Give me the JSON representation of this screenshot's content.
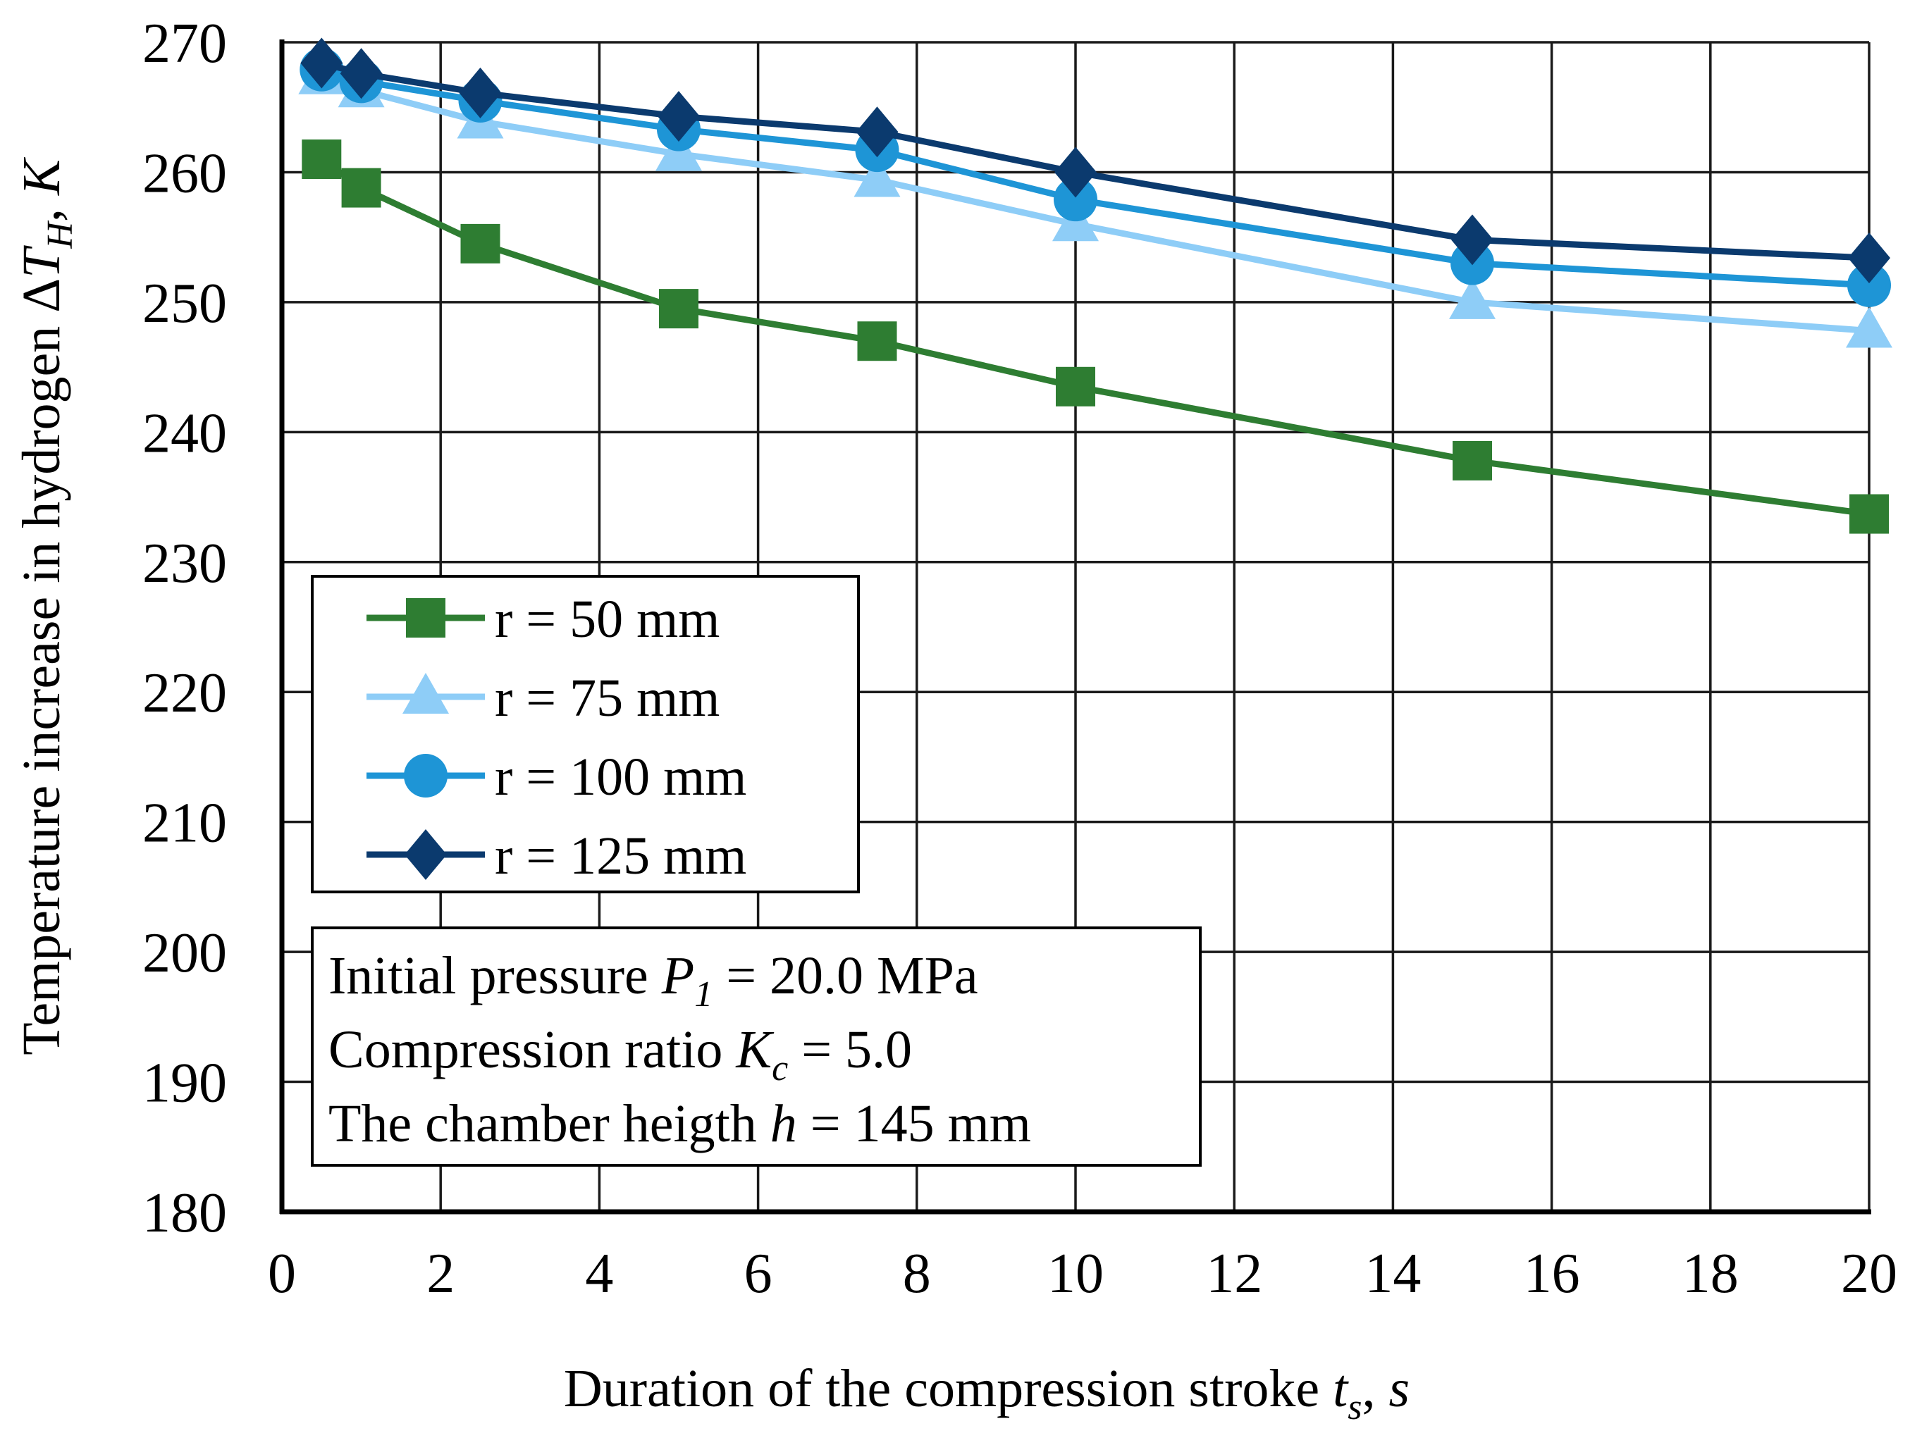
{
  "chart_data": {
    "type": "line",
    "title": "",
    "xlabel": {
      "prefix": "Duration of the compression stroke ",
      "var": "t",
      "sub": "s",
      "unit_sep": ", ",
      "unit": "s"
    },
    "ylabel": {
      "prefix": "Temperature increase in hydrogen Δ",
      "var": "T",
      "sub": "H",
      "unit_sep": ", ",
      "unit": "K"
    },
    "xlim": [
      0,
      20
    ],
    "ylim": [
      180,
      270
    ],
    "xticks": [
      "0",
      "2",
      "4",
      "6",
      "8",
      "10",
      "12",
      "14",
      "16",
      "18",
      "20"
    ],
    "yticks": [
      "180",
      "190",
      "200",
      "210",
      "220",
      "230",
      "240",
      "250",
      "260",
      "270"
    ],
    "grid": true,
    "x": [
      0.5,
      1,
      2.5,
      5,
      7.5,
      10,
      15,
      20
    ],
    "series": [
      {
        "name": "r = 50 mm",
        "color": "#2e7d32",
        "marker": "square",
        "values": [
          261.0,
          258.8,
          254.5,
          249.5,
          247.0,
          243.5,
          237.8,
          233.7
        ]
      },
      {
        "name": "r = 75 mm",
        "color": "#8ecdf7",
        "marker": "triangle",
        "values": [
          267.3,
          266.3,
          263.9,
          261.4,
          259.4,
          256.0,
          250.0,
          247.8
        ]
      },
      {
        "name": "r = 100 mm",
        "color": "#1e95d6",
        "marker": "circle",
        "values": [
          267.9,
          267.0,
          265.5,
          263.3,
          261.7,
          257.9,
          253.0,
          251.3
        ]
      },
      {
        "name": "r = 125 mm",
        "color": "#0b3a6e",
        "marker": "diamond",
        "values": [
          268.4,
          267.6,
          266.1,
          264.3,
          263.1,
          260.0,
          254.8,
          253.4
        ]
      }
    ],
    "legend_position": "center-left",
    "annotation": {
      "line1": {
        "prefix": "Initial pressure ",
        "var": "P",
        "sub": "1",
        "suffix": " = 20.0 MPa"
      },
      "line2": {
        "prefix": "Compression ratio ",
        "var": "K",
        "sub": "c",
        "suffix": " = 5.0"
      },
      "line3": {
        "prefix": "The chamber heigth ",
        "var": "h",
        "suffix": " = 145 mm"
      }
    }
  }
}
